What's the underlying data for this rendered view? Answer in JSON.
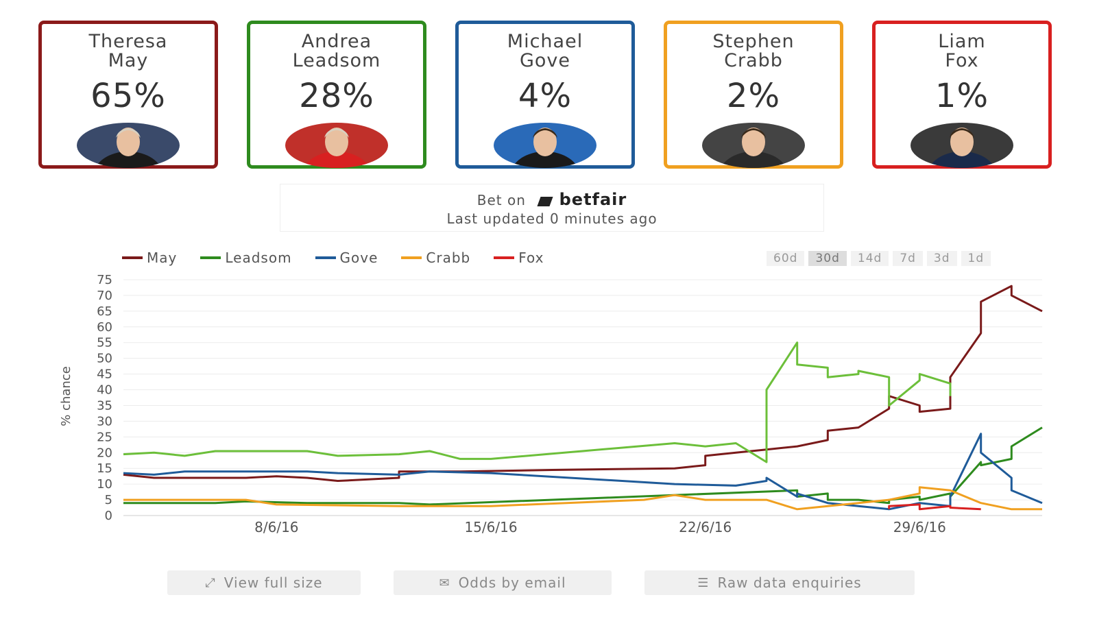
{
  "candidates": [
    {
      "first": "Theresa",
      "last": "May",
      "pct": "65%",
      "color": "#8b1a1a",
      "avatar": "theresa-may-photo"
    },
    {
      "first": "Andrea",
      "last": "Leadsom",
      "pct": "28%",
      "color": "#2e8b1e",
      "avatar": "andrea-leadsom-photo"
    },
    {
      "first": "Michael",
      "last": "Gove",
      "pct": "4%",
      "color": "#1f5b99",
      "avatar": "michael-gove-photo"
    },
    {
      "first": "Stephen",
      "last": "Crabb",
      "pct": "2%",
      "color": "#f0a020",
      "avatar": "stephen-crabb-photo"
    },
    {
      "first": "Liam",
      "last": "Fox",
      "pct": "1%",
      "color": "#d82020",
      "avatar": "liam-fox-photo"
    }
  ],
  "betbox": {
    "bet_on": "Bet on",
    "brand": "betfair",
    "updated": "Last updated 0 minutes ago"
  },
  "ranges": [
    "60d",
    "30d",
    "14d",
    "7d",
    "3d",
    "1d"
  ],
  "active_range": "30d",
  "actions": {
    "view_full": "View full size",
    "odds_email": "Odds by email",
    "raw_data": "Raw data enquiries"
  },
  "chart_data": {
    "type": "line",
    "ylabel": "% chance",
    "ylim": [
      0,
      75
    ],
    "yticks": [
      0,
      5,
      10,
      15,
      20,
      25,
      30,
      35,
      40,
      45,
      50,
      55,
      60,
      65,
      70,
      75
    ],
    "xlim": [
      "2016-06-03",
      "2016-07-03"
    ],
    "xtick_labels": [
      {
        "date": "2016-06-08",
        "label": "8/6/16"
      },
      {
        "date": "2016-06-15",
        "label": "15/6/16"
      },
      {
        "date": "2016-06-22",
        "label": "22/6/16"
      },
      {
        "date": "2016-06-29",
        "label": "29/6/16"
      }
    ],
    "legend_position": "top-left",
    "series": [
      {
        "name": "May",
        "color": "#7a1a1a",
        "points": [
          [
            "2016-06-03",
            13
          ],
          [
            "2016-06-04",
            12
          ],
          [
            "2016-06-07",
            12
          ],
          [
            "2016-06-08",
            12.5
          ],
          [
            "2016-06-09",
            12
          ],
          [
            "2016-06-10",
            11
          ],
          [
            "2016-06-11",
            11.5
          ],
          [
            "2016-06-12",
            12
          ],
          [
            "2016-06-12",
            14
          ],
          [
            "2016-06-14",
            14
          ],
          [
            "2016-06-17",
            14.5
          ],
          [
            "2016-06-21",
            15
          ],
          [
            "2016-06-22",
            16
          ],
          [
            "2016-06-22",
            19
          ],
          [
            "2016-06-23",
            20
          ],
          [
            "2016-06-24",
            21
          ],
          [
            "2016-06-25",
            22
          ],
          [
            "2016-06-26",
            24
          ],
          [
            "2016-06-26",
            27
          ],
          [
            "2016-06-27",
            28
          ],
          [
            "2016-06-28",
            34
          ],
          [
            "2016-06-28",
            38
          ],
          [
            "2016-06-29",
            35
          ],
          [
            "2016-06-29",
            33
          ],
          [
            "2016-06-30",
            34
          ],
          [
            "2016-06-30",
            44
          ],
          [
            "2016-07-01",
            58
          ],
          [
            "2016-07-01",
            68
          ],
          [
            "2016-07-02",
            73
          ],
          [
            "2016-07-02",
            70
          ],
          [
            "2016-07-03",
            65
          ]
        ]
      },
      {
        "name": "Leadsom",
        "color": "#6cbf3a",
        "points": [
          [
            "2016-06-03",
            19.5
          ],
          [
            "2016-06-04",
            20
          ],
          [
            "2016-06-05",
            19
          ],
          [
            "2016-06-06",
            20.5
          ],
          [
            "2016-06-09",
            20.5
          ],
          [
            "2016-06-10",
            19
          ],
          [
            "2016-06-12",
            19.5
          ],
          [
            "2016-06-13",
            20.5
          ],
          [
            "2016-06-14",
            18
          ],
          [
            "2016-06-15",
            18
          ],
          [
            "2016-06-21",
            23
          ],
          [
            "2016-06-22",
            22
          ],
          [
            "2016-06-23",
            23
          ],
          [
            "2016-06-24",
            17
          ],
          [
            "2016-06-24",
            40
          ],
          [
            "2016-06-25",
            55
          ],
          [
            "2016-06-25",
            48
          ],
          [
            "2016-06-26",
            47
          ],
          [
            "2016-06-26",
            44
          ],
          [
            "2016-06-27",
            45
          ],
          [
            "2016-06-27",
            46
          ],
          [
            "2016-06-28",
            44
          ],
          [
            "2016-06-28",
            35
          ],
          [
            "2016-06-29",
            43
          ],
          [
            "2016-06-29",
            45
          ],
          [
            "2016-06-30",
            42
          ],
          [
            "2016-06-30",
            38
          ]
        ]
      },
      {
        "name": "Leadsom",
        "color": "#2e8b1e",
        "points": [
          [
            "2016-06-03",
            4
          ],
          [
            "2016-06-06",
            4
          ],
          [
            "2016-06-07",
            4.5
          ],
          [
            "2016-06-09",
            4
          ],
          [
            "2016-06-12",
            4
          ],
          [
            "2016-06-13",
            3.5
          ],
          [
            "2016-06-25",
            8
          ],
          [
            "2016-06-25",
            6
          ],
          [
            "2016-06-26",
            7
          ],
          [
            "2016-06-26",
            5
          ],
          [
            "2016-06-27",
            5
          ],
          [
            "2016-06-28",
            4
          ],
          [
            "2016-06-28",
            5
          ],
          [
            "2016-06-29",
            6
          ],
          [
            "2016-06-29",
            5
          ],
          [
            "2016-06-30",
            7
          ],
          [
            "2016-06-30",
            6
          ],
          [
            "2016-07-01",
            17
          ],
          [
            "2016-07-01",
            16
          ],
          [
            "2016-07-02",
            18
          ],
          [
            "2016-07-02",
            22
          ],
          [
            "2016-07-03",
            28
          ]
        ]
      },
      {
        "name": "Gove",
        "color": "#1f5b99",
        "points": [
          [
            "2016-06-03",
            13.5
          ],
          [
            "2016-06-04",
            13
          ],
          [
            "2016-06-05",
            14
          ],
          [
            "2016-06-09",
            14
          ],
          [
            "2016-06-10",
            13.5
          ],
          [
            "2016-06-12",
            13
          ],
          [
            "2016-06-13",
            14
          ],
          [
            "2016-06-15",
            13.5
          ],
          [
            "2016-06-21",
            10
          ],
          [
            "2016-06-23",
            9.5
          ],
          [
            "2016-06-24",
            11
          ],
          [
            "2016-06-24",
            12
          ],
          [
            "2016-06-25",
            6
          ],
          [
            "2016-06-25",
            7
          ],
          [
            "2016-06-26",
            4
          ],
          [
            "2016-06-27",
            3
          ],
          [
            "2016-06-28",
            2
          ],
          [
            "2016-06-29",
            4
          ],
          [
            "2016-06-30",
            3
          ],
          [
            "2016-06-30",
            6
          ],
          [
            "2016-07-01",
            26
          ],
          [
            "2016-07-01",
            20
          ],
          [
            "2016-07-02",
            12
          ],
          [
            "2016-07-02",
            8
          ],
          [
            "2016-07-03",
            4
          ]
        ]
      },
      {
        "name": "Crabb",
        "color": "#f0a020",
        "points": [
          [
            "2016-06-03",
            5
          ],
          [
            "2016-06-07",
            5
          ],
          [
            "2016-06-08",
            3.5
          ],
          [
            "2016-06-12",
            3
          ],
          [
            "2016-06-15",
            3
          ],
          [
            "2016-06-20",
            5
          ],
          [
            "2016-06-21",
            6.5
          ],
          [
            "2016-06-22",
            5
          ],
          [
            "2016-06-24",
            5
          ],
          [
            "2016-06-25",
            2
          ],
          [
            "2016-06-26",
            3
          ],
          [
            "2016-06-27",
            4
          ],
          [
            "2016-06-28",
            5
          ],
          [
            "2016-06-29",
            7
          ],
          [
            "2016-06-29",
            9
          ],
          [
            "2016-06-30",
            8
          ],
          [
            "2016-07-01",
            4
          ],
          [
            "2016-07-02",
            2
          ],
          [
            "2016-07-03",
            2
          ]
        ]
      },
      {
        "name": "Fox",
        "color": "#d82020",
        "points": [
          [
            "2016-06-28",
            2
          ],
          [
            "2016-06-28",
            3
          ],
          [
            "2016-06-29",
            3.5
          ],
          [
            "2016-06-29",
            2
          ],
          [
            "2016-06-30",
            3
          ],
          [
            "2016-06-30",
            2.5
          ],
          [
            "2016-07-01",
            2
          ]
        ]
      }
    ]
  }
}
